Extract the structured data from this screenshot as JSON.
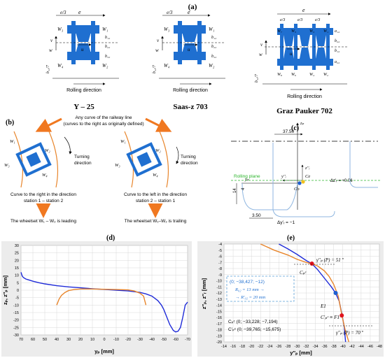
{
  "panel_a": {
    "label": "(a)",
    "bogies": [
      {
        "name": "Y – 25",
        "rolling": "Rolling direction",
        "wheels": [
          "W₃",
          "W₁",
          "W₄",
          "W₂"
        ],
        "dims": [
          "e",
          "e/3",
          "b₁₂",
          "b₂₂",
          "b₃₂",
          "b₁₂/7"
        ]
      },
      {
        "name": "Saas-z 703",
        "rolling": "Rolling direction",
        "wheels": [
          "W₃",
          "W₁",
          "W₄",
          "W₂"
        ],
        "dims": [
          "e",
          "e/3",
          "b₁₂",
          "b₂₂",
          "b₃₂",
          "b₁₂/7"
        ]
      },
      {
        "name": "Graz Pauker 702",
        "rolling": "Rolling direction",
        "wheels": [
          "W₇",
          "W₅",
          "W₃",
          "W₁",
          "W₈",
          "W₆",
          "W₄",
          "W₂"
        ],
        "dims": [
          "e",
          "e/3",
          "e/3",
          "e/3",
          "a₁₂",
          "b₂₂",
          "b₁₂",
          "a₂₂",
          "b₁₂/7"
        ]
      }
    ],
    "vec_u": "u",
    "vec_v": "v",
    "vec_w": "w"
  },
  "panel_b": {
    "label": "(b)",
    "header": [
      "Any curve of the railway line",
      "(curves to the right as originally defined)"
    ],
    "turning": [
      "Turning",
      "direction"
    ],
    "left_caption": [
      "Curve to the right in the direction",
      "station 1 – station 2"
    ],
    "right_caption": [
      "Curve to the left in the direction",
      "station 2 – station 1"
    ],
    "left_result": "The wheelset W₁ – W₂ is leading",
    "right_result": "The wheelset W₁–W₂ is trailing",
    "wheels": [
      "W₁",
      "W₂",
      "W₃",
      "W₄"
    ]
  },
  "panel_c": {
    "label": "(c)",
    "dim_top": "37.50",
    "rolling_plane": "Rolling plane",
    "dz_label": "Δz′ᵣ = +0.06",
    "dy_label": "Δy′ᵣ = −1",
    "dim_bottom": "3.50",
    "dim_left_14": "14",
    "dim_left_4": "4",
    "point_ce": "Ce",
    "point_co": "Co",
    "axis_zp": "zₚ",
    "axis_yp": "yₚ",
    "axis_zr": "z′′ᵣ",
    "axis_yr": "y′′ᵣ"
  },
  "panel_d": {
    "label": "(d)",
    "chart_data": {
      "type": "line",
      "xlabel": "yₚ [mm]",
      "ylabel": "zₚ, z′′ₚ [mm]",
      "xlim": [
        70,
        -70
      ],
      "ylim": [
        -30,
        30
      ],
      "xticks": [
        70,
        60,
        50,
        40,
        30,
        20,
        10,
        0,
        -10,
        -20,
        -30,
        -40,
        -50,
        -60,
        -70
      ],
      "yticks": [
        30,
        25,
        20,
        15,
        10,
        5,
        0,
        -5,
        -10,
        -15,
        -20,
        -25,
        -30
      ],
      "series": [
        {
          "color": "#1f2bd8",
          "x": [
            70,
            69,
            68,
            66,
            64,
            60,
            55,
            50,
            40,
            30,
            20,
            10,
            0,
            -10,
            -20,
            -30,
            -35,
            -40,
            -45,
            -48,
            -50,
            -52,
            -55,
            -58,
            -60,
            -62,
            -64,
            -66,
            -68,
            -70
          ],
          "y": [
            12,
            9.5,
            8.5,
            7.5,
            7,
            6,
            5,
            4.2,
            3,
            2.2,
            1.6,
            1,
            0.5,
            0,
            -0.5,
            -1.5,
            -2.5,
            -4,
            -7,
            -10,
            -13,
            -17,
            -23,
            -27,
            -28,
            -27.5,
            -25,
            -18,
            -10,
            -8
          ]
        },
        {
          "color": "#e8852b",
          "x": [
            40,
            39,
            38,
            36,
            33,
            30,
            25,
            20,
            10,
            0,
            -10,
            -20,
            -25,
            -30,
            -33,
            -34,
            -35
          ],
          "y": [
            -10,
            -8,
            -6,
            -3.5,
            -1.5,
            -0.3,
            0.5,
            0.8,
            0.8,
            0.6,
            0.4,
            0.2,
            -0.5,
            -2,
            -4,
            -7,
            -10
          ]
        }
      ]
    }
  },
  "panel_e": {
    "label": "(e)",
    "chart_data": {
      "type": "line",
      "xlabel": "y′′ₚ [mm]",
      "ylabel": "z′′ₚ, z′′ᵣ [mm]",
      "xlim": [
        -14,
        -48
      ],
      "ylim": [
        -20,
        -4
      ],
      "xticks": [
        -14,
        -16,
        -18,
        -20,
        -22,
        -24,
        -26,
        -28,
        -30,
        -32,
        -34,
        -36,
        -38,
        -40,
        -42,
        -44,
        -46,
        -48
      ],
      "yticks": [
        -4,
        -5,
        -6,
        -7,
        -8,
        -9,
        -10,
        -11,
        -12,
        -13,
        -14,
        -15,
        -16,
        -17,
        -18,
        -19,
        -20
      ],
      "series": [
        {
          "color": "#1f2bd8",
          "x": [
            -26,
            -28,
            -30,
            -32,
            -33.2,
            -34.5,
            -36,
            -37.5,
            -38.4,
            -39.2,
            -39.8,
            -40.3,
            -40.6
          ],
          "y": [
            -4,
            -4.8,
            -5.7,
            -6.7,
            -7.2,
            -8.2,
            -9.6,
            -11,
            -12,
            -13.3,
            -15.5,
            -17.5,
            -20
          ]
        },
        {
          "color": "#e8852b",
          "x": [
            -22,
            -25,
            -28,
            -30,
            -32,
            -33.2,
            -34.5,
            -36,
            -37,
            -38,
            -39,
            -39.8,
            -40.5,
            -41.3
          ],
          "y": [
            -4,
            -5,
            -5.8,
            -6.5,
            -7,
            -7.2,
            -7.6,
            -8.4,
            -9.3,
            -10.6,
            -12.5,
            -15.7,
            -18,
            -20
          ]
        }
      ],
      "points": [
        {
          "x": -33.228,
          "y": -7.194,
          "color": "#e0141e"
        },
        {
          "x": -38.427,
          "y": -12,
          "color": "#1f5fd0"
        },
        {
          "x": -39.765,
          "y": -15.675,
          "color": "#e0141e"
        }
      ]
    },
    "ann_cpc": "Cₚᶜ",
    "ann_gamma1": "γ′′ₚ (P) = 51 º",
    "ann_gamma2": "γ′′ₚ (P) = 70 º",
    "ann_e1": "E1",
    "ann_cpc2": "C′ₚᶜ ≡ F1",
    "box_line1": "(0; −38,427; −12)",
    "box_line2": "R₀₂ = 13 mm →",
    "box_line3": "→ R′₀₂ = 20 mm",
    "coord_1": "Cₚᶜ (0; −33,228; −7,194)",
    "coord_2": "C′ₚᶜ (0; −39,765; −15,675)"
  },
  "colors": {
    "bogie_blue": "#1f6fd0",
    "rail_orange": "#e8852b",
    "arrow_orange": "#f07820",
    "profile_blue": "#1f2bd8",
    "light_blue": "#8fb6e0"
  }
}
